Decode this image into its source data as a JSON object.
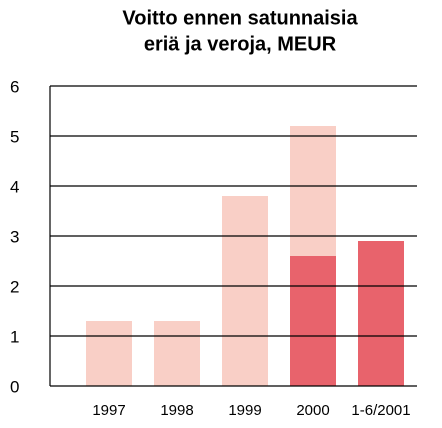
{
  "chart_data": {
    "type": "bar",
    "stacked": true,
    "title": [
      "Voitto ennen satunnaisia",
      "eriä ja veroja, MEUR"
    ],
    "categories": [
      "1997",
      "1998",
      "1999",
      "2000",
      "1-6/2001"
    ],
    "series": [
      {
        "color": "#e8636c",
        "values": [
          null,
          null,
          null,
          2.6,
          2.9
        ]
      },
      {
        "color": "#f9cfc6",
        "values": [
          1.3,
          1.3,
          3.8,
          2.6,
          null
        ]
      }
    ],
    "ylim": [
      0,
      6
    ],
    "yticks": [
      0,
      1,
      2,
      3,
      4,
      5,
      6
    ],
    "grid": true
  }
}
